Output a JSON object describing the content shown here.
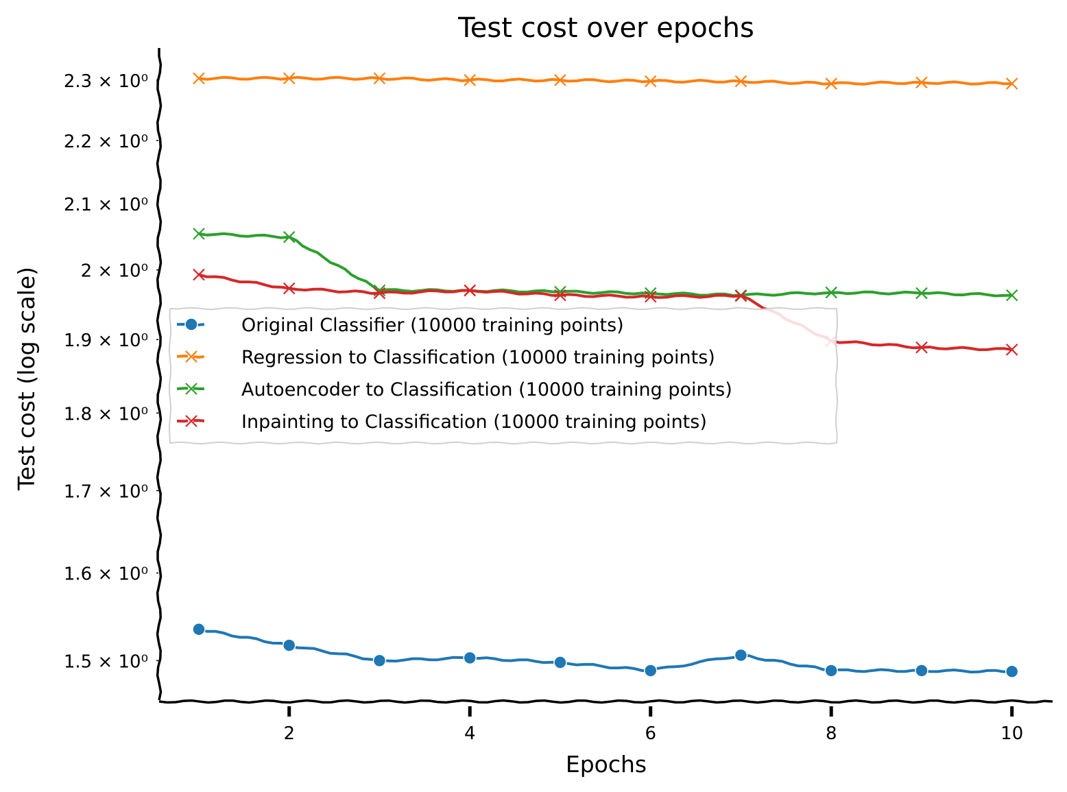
{
  "chart_data": {
    "type": "line",
    "title": "Test cost over epochs",
    "xlabel": "Epochs",
    "ylabel": "Test cost (log scale)",
    "yscale": "log",
    "xlim": [
      0.56,
      10.45
    ],
    "ylim": [
      1.457,
      2.355
    ],
    "grid": false,
    "legend_placement": "center-left",
    "style": "xkcd",
    "x_ticks": [
      2,
      4,
      6,
      8,
      10
    ],
    "x_tick_labels": [
      "2",
      "4",
      "6",
      "8",
      "10"
    ],
    "y_ticks": [
      1.5,
      1.6,
      1.7,
      1.8,
      1.9,
      2.0,
      2.1,
      2.2,
      2.3
    ],
    "y_tick_labels": [
      "1.5 × 10⁰",
      "1.6 × 10⁰",
      "1.7 × 10⁰",
      "1.8 × 10⁰",
      "1.9 × 10⁰",
      "2 × 10⁰",
      "2.1 × 10⁰",
      "2.2 × 10⁰",
      "2.3 × 10⁰"
    ],
    "x": [
      1,
      2,
      3,
      4,
      5,
      6,
      7,
      8,
      9,
      10
    ],
    "series": [
      {
        "name": "Original Classifier (10000 training points)",
        "color": "#1f77b4",
        "marker": "circle",
        "values": [
          1.535,
          1.517,
          1.5,
          1.503,
          1.498,
          1.489,
          1.506,
          1.489,
          1.489,
          1.488
        ]
      },
      {
        "name": "Regression to Classification (10000 training points)",
        "color": "#ff7f0e",
        "marker": "x",
        "values": [
          2.303,
          2.303,
          2.303,
          2.3,
          2.3,
          2.298,
          2.298,
          2.294,
          2.296,
          2.294
        ]
      },
      {
        "name": "Autoencoder to Classification (10000 training points)",
        "color": "#2ca02c",
        "marker": "x",
        "values": [
          2.054,
          2.049,
          1.97,
          1.97,
          1.968,
          1.966,
          1.963,
          1.967,
          1.966,
          1.963
        ]
      },
      {
        "name": "Inpainting to Classification (10000 training points)",
        "color": "#d62728",
        "marker": "x",
        "values": [
          1.993,
          1.973,
          1.966,
          1.97,
          1.963,
          1.961,
          1.962,
          1.898,
          1.889,
          1.886
        ]
      }
    ]
  }
}
